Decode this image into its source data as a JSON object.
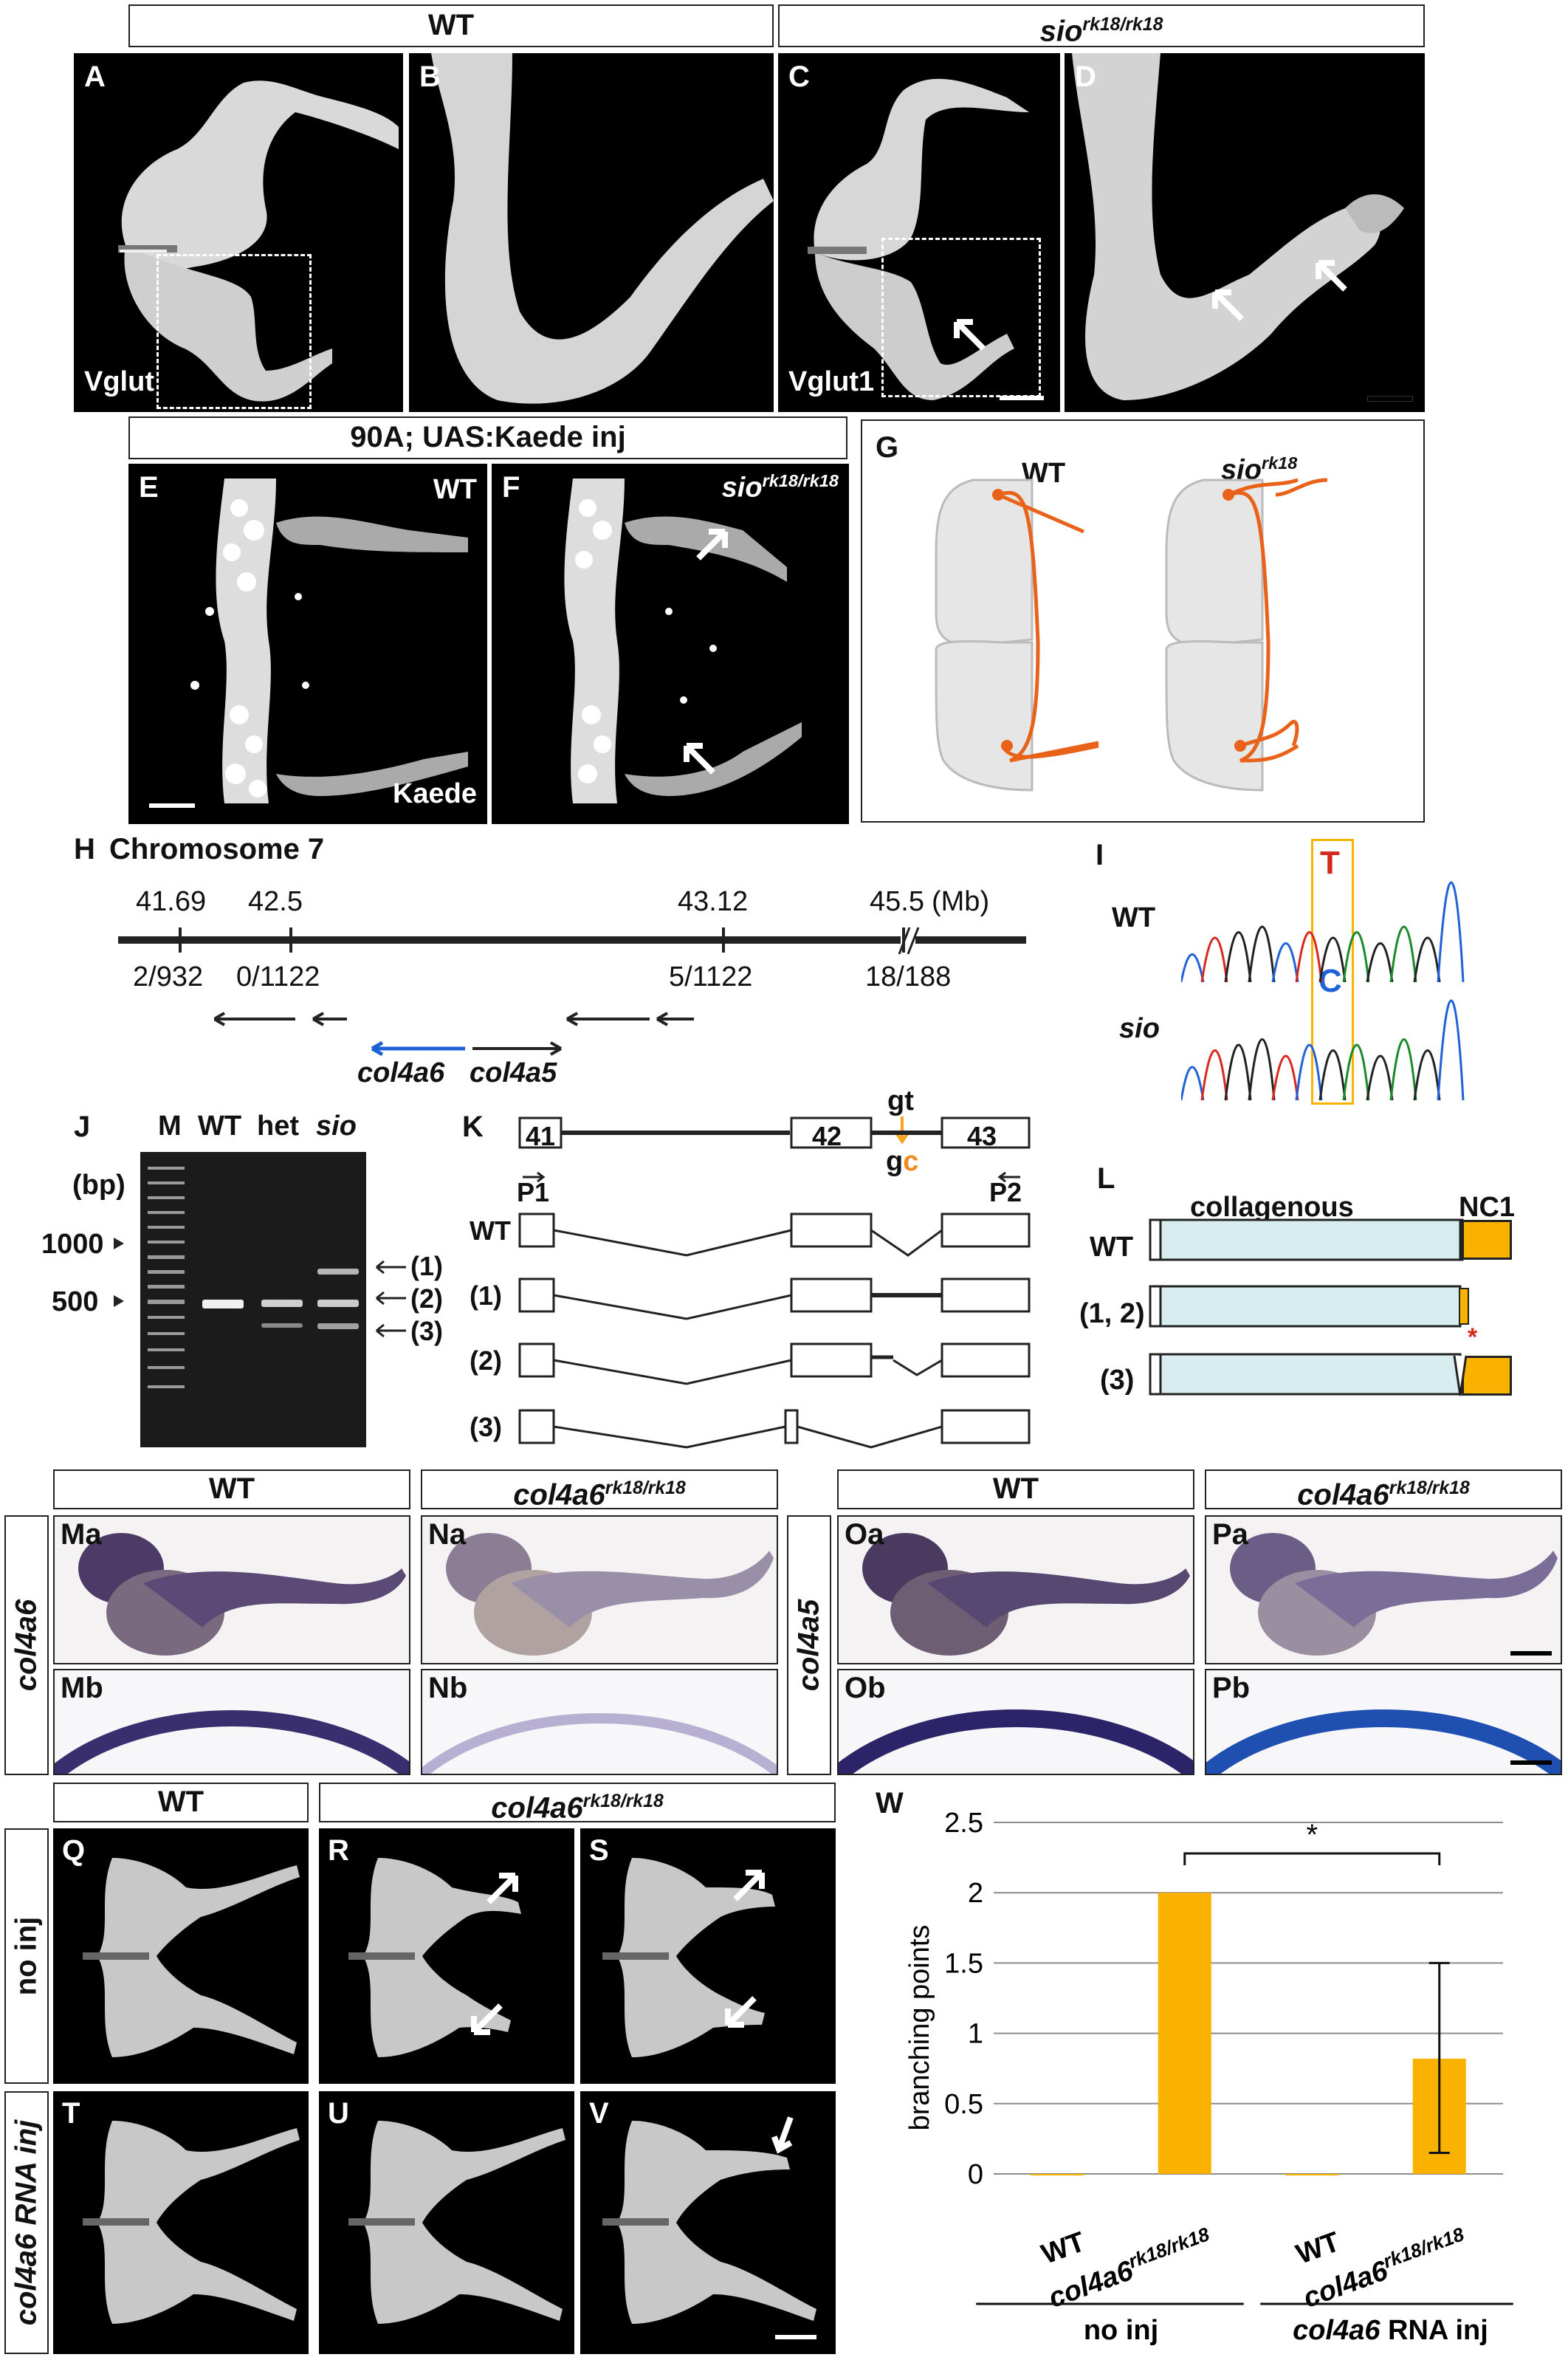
{
  "panels": {
    "A": "A",
    "B": "B",
    "C": "C",
    "D": "D",
    "E": "E",
    "F": "F",
    "G": "G",
    "H": "H",
    "I": "I",
    "J": "J",
    "K": "K",
    "L": "L",
    "Ma": "Ma",
    "Mb": "Mb",
    "Na": "Na",
    "Nb": "Nb",
    "Oa": "Oa",
    "Ob": "Ob",
    "Pa": "Pa",
    "Pb": "Pb",
    "Q": "Q",
    "R": "R",
    "S": "S",
    "T": "T",
    "U": "U",
    "V": "V",
    "W": "W"
  },
  "headers": {
    "wt": "WT",
    "sio_base": "sio",
    "sio_sup": "rk18/rk18",
    "sio_sup_short": "rk18",
    "kaede_inj": "90A; UAS:Kaede inj",
    "col4a6_base": "col4a6",
    "col4a6_sup": "rk18/rk18",
    "col4a5": "col4a5"
  },
  "stain_labels": {
    "vglut": "Vglut",
    "vglut1": "Vglut1",
    "kaede": "Kaede"
  },
  "map": {
    "chromosome": "Chromosome 7",
    "positions": [
      "41.69",
      "42.5",
      "43.12",
      "45.5"
    ],
    "unit": "(Mb)",
    "recombinants": [
      "2/932",
      "0/1122",
      "5/1122",
      "18/188"
    ],
    "genes": [
      "col4a6",
      "col4a5"
    ]
  },
  "sequence": {
    "wt": "WT",
    "sio": "sio",
    "wt_base": "T",
    "mut_base": "C"
  },
  "gel": {
    "lanes": [
      "M",
      "WT",
      "het",
      "sio"
    ],
    "unit": "(bp)",
    "markers": [
      "1000",
      "500"
    ],
    "products": [
      "(1)",
      "(2)",
      "(3)"
    ]
  },
  "exons": {
    "numbers": [
      "41",
      "42",
      "43"
    ],
    "primers": [
      "P1",
      "P2"
    ],
    "splice_wt": "gt",
    "splice_mut_g": "g",
    "splice_mut_c": "c",
    "rows": [
      "WT",
      "(1)",
      "(2)",
      "(3)"
    ]
  },
  "protein": {
    "domains": [
      "collagenous",
      "NC1"
    ],
    "rows": [
      "WT",
      "(1, 2)",
      "(3)"
    ],
    "star": "*"
  },
  "ish": {
    "side_left": "col4a6",
    "side_right": "col4a5"
  },
  "rescue": {
    "rows": [
      "no inj",
      "col4a6 RNA inj"
    ],
    "row2_gene": "col4a6",
    "row2_rest": " RNA inj"
  },
  "chart_data": {
    "type": "bar",
    "ylabel": "branching points",
    "ylim": [
      0,
      2.5
    ],
    "yticks": [
      "0",
      "0.5",
      "1",
      "1.5",
      "2",
      "2.5"
    ],
    "categories": [
      "WT",
      "col4a6rk18/rk18",
      "WT",
      "col4a6rk18/rk18"
    ],
    "values": [
      0,
      2,
      0,
      0.82
    ],
    "error_low": [
      0,
      0,
      0,
      0.15
    ],
    "error_high": [
      0,
      0,
      0,
      1.5
    ],
    "groups": [
      "no inj",
      "col4a6 RNA inj"
    ],
    "significance": "*",
    "bar_color": "#f9b200"
  },
  "colors": {
    "orange": "#e8621a",
    "gold": "#f9b200",
    "lightblue": "#d8edf0",
    "red": "#d6281e",
    "blue": "#1f62d8",
    "ish": "#3a2f6e"
  }
}
